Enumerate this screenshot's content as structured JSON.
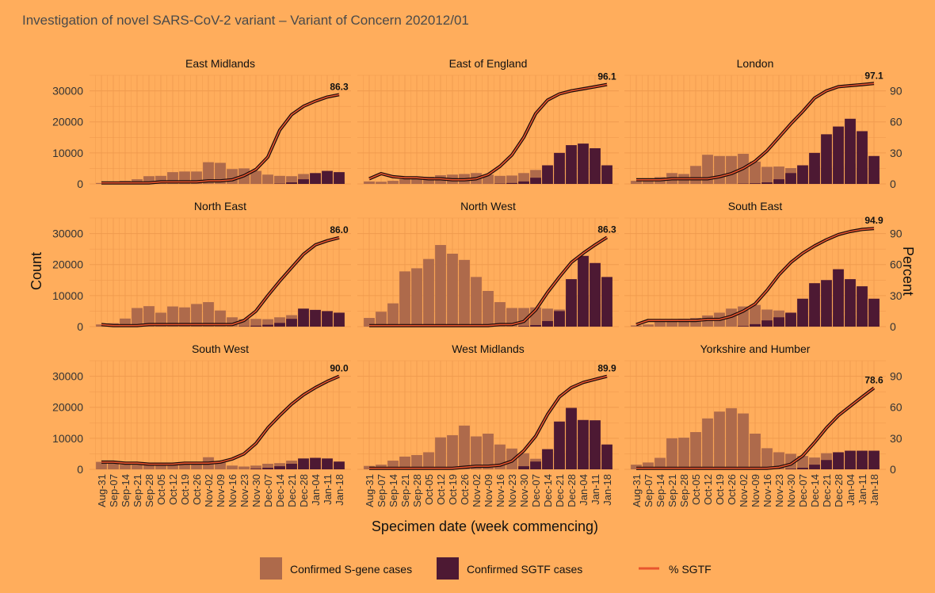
{
  "chart_data": {
    "type": "bar",
    "title": "Investigation of novel SARS-CoV-2 variant – Variant of Concern 202012/01",
    "xlabel": "Specimen date (week commencing)",
    "ylabel": "Count",
    "y2label": "Percent",
    "ylim": [
      0,
      35000
    ],
    "y2lim": [
      0,
      105
    ],
    "yticks": [
      0,
      10000,
      20000,
      30000
    ],
    "y2ticks": [
      0,
      30,
      60,
      90
    ],
    "weeks": [
      "Aug-31",
      "Sep-07",
      "Sep-14",
      "Sep-21",
      "Sep-28",
      "Oct-05",
      "Oct-12",
      "Oct-19",
      "Oct-26",
      "Nov-02",
      "Nov-09",
      "Nov-16",
      "Nov-23",
      "Nov-30",
      "Dec-07",
      "Dec-14",
      "Dec-21",
      "Dec-28",
      "Jan-04",
      "Jan-11",
      "Jan-18"
    ],
    "legend": [
      {
        "key": "sgene",
        "label": "Confirmed S-gene cases",
        "color": "#AE6A4B"
      },
      {
        "key": "sgtf",
        "label": "Confirmed SGTF cases",
        "color": "#4D1933"
      },
      {
        "key": "pct",
        "label": "% SGTF",
        "color": "#E8552E"
      }
    ],
    "panels": [
      {
        "name": "East Midlands",
        "sgene": [
          300,
          500,
          1000,
          1500,
          2500,
          2600,
          3800,
          4000,
          4000,
          7000,
          6800,
          4800,
          5000,
          4200,
          3000,
          2600,
          2500,
          3200,
          3200,
          2200,
          1000
        ],
        "sgtf": [
          0,
          0,
          0,
          0,
          0,
          0,
          0,
          0,
          0,
          0,
          0,
          0,
          0,
          0,
          0,
          100,
          500,
          1500,
          3500,
          4200,
          3800
        ],
        "pct": [
          1,
          1,
          1,
          1,
          1,
          2,
          2,
          2,
          2,
          3,
          3,
          4,
          8,
          14,
          26,
          52,
          67,
          75,
          80,
          84,
          86.3
        ],
        "final_label": "86.3"
      },
      {
        "name": "East of England",
        "sgene": [
          800,
          700,
          1000,
          1500,
          1800,
          2300,
          2800,
          3000,
          3200,
          3500,
          3000,
          2600,
          2700,
          3500,
          4500,
          4700,
          3000,
          2000,
          1500,
          1000,
          500
        ],
        "sgtf": [
          0,
          0,
          0,
          0,
          0,
          0,
          0,
          0,
          0,
          0,
          0,
          100,
          300,
          800,
          2000,
          6000,
          10000,
          12500,
          13000,
          11500,
          6000
        ],
        "pct": [
          5,
          10,
          7,
          6,
          6,
          5,
          5,
          4,
          4,
          5,
          9,
          17,
          28,
          45,
          68,
          81,
          87,
          90,
          92,
          94,
          96.1
        ],
        "final_label": "96.1"
      },
      {
        "name": "London",
        "sgene": [
          1000,
          1800,
          2200,
          3500,
          3200,
          5800,
          9400,
          9000,
          9000,
          9700,
          7200,
          5500,
          5600,
          5100,
          4800,
          5800,
          5200,
          5800,
          6500,
          5000,
          2000
        ],
        "sgtf": [
          0,
          0,
          0,
          0,
          0,
          0,
          0,
          0,
          0,
          100,
          200,
          500,
          1500,
          3500,
          6000,
          10000,
          16000,
          18500,
          21000,
          17000,
          9000
        ],
        "pct": [
          4,
          4,
          4,
          5,
          5,
          5,
          5,
          7,
          10,
          15,
          22,
          32,
          45,
          58,
          70,
          83,
          90,
          94,
          95,
          96,
          97.1
        ],
        "final_label": "97.1"
      },
      {
        "name": "North East",
        "sgene": [
          700,
          1100,
          2600,
          6000,
          6600,
          4500,
          6500,
          6200,
          7300,
          7900,
          5200,
          3000,
          2400,
          2500,
          2400,
          3000,
          3700,
          3200,
          2000,
          1200,
          600
        ],
        "sgtf": [
          0,
          0,
          0,
          0,
          0,
          0,
          0,
          0,
          0,
          0,
          0,
          0,
          100,
          300,
          600,
          1200,
          2500,
          5800,
          5400,
          5000,
          4500
        ],
        "pct": [
          2,
          1,
          1,
          1,
          2,
          2,
          2,
          2,
          2,
          2,
          2,
          2,
          6,
          15,
          30,
          44,
          57,
          70,
          79,
          83,
          86.0
        ],
        "final_label": "86.0"
      },
      {
        "name": "North West",
        "sgene": [
          2800,
          4800,
          7500,
          17800,
          18800,
          21800,
          26300,
          23500,
          21500,
          16000,
          11500,
          7900,
          6000,
          6000,
          6200,
          5800,
          5500,
          10000,
          10000,
          7400,
          3100
        ],
        "sgtf": [
          0,
          0,
          0,
          0,
          0,
          0,
          0,
          0,
          0,
          0,
          0,
          0,
          0,
          200,
          500,
          1800,
          5000,
          15300,
          22800,
          20500,
          16000
        ],
        "pct": [
          1,
          1,
          1,
          1,
          1,
          1,
          1,
          1,
          1,
          1,
          1,
          2,
          2,
          5,
          16,
          33,
          48,
          62,
          71,
          79,
          86.3
        ],
        "final_label": "86.3"
      },
      {
        "name": "South East",
        "sgene": [
          400,
          700,
          1500,
          2000,
          2500,
          2800,
          3600,
          4500,
          5800,
          6500,
          7000,
          5500,
          5200,
          4000,
          3500,
          3200,
          3000,
          3500,
          3600,
          2500,
          1000
        ],
        "sgtf": [
          0,
          0,
          0,
          0,
          0,
          0,
          0,
          0,
          0,
          200,
          800,
          2000,
          3000,
          4500,
          9000,
          14000,
          15000,
          18500,
          15300,
          13000,
          9000
        ],
        "pct": [
          2,
          6,
          6,
          6,
          6,
          6,
          7,
          7,
          10,
          15,
          22,
          35,
          50,
          62,
          71,
          78,
          84,
          89,
          92,
          94,
          94.9
        ],
        "final_label": "94.9"
      },
      {
        "name": "South West",
        "sgene": [
          2400,
          2000,
          1500,
          1400,
          1300,
          1500,
          1600,
          1800,
          2000,
          3900,
          2200,
          1200,
          900,
          1200,
          1800,
          2000,
          2800,
          1800,
          1200,
          600,
          200
        ],
        "sgtf": [
          0,
          0,
          0,
          0,
          0,
          0,
          0,
          0,
          0,
          0,
          0,
          0,
          0,
          200,
          500,
          1000,
          1800,
          3500,
          3700,
          3500,
          2500
        ],
        "pct": [
          7,
          7,
          6,
          6,
          5,
          5,
          5,
          6,
          6,
          6,
          7,
          10,
          15,
          25,
          40,
          52,
          63,
          72,
          79,
          85,
          90.0
        ],
        "final_label": "90.0"
      },
      {
        "name": "West Midlands",
        "sgene": [
          1100,
          1500,
          2800,
          4100,
          4600,
          5500,
          10300,
          11000,
          14100,
          10600,
          11500,
          8000,
          6700,
          5200,
          3400,
          5600,
          5100,
          6000,
          3500,
          2500,
          900
        ],
        "sgtf": [
          0,
          0,
          0,
          0,
          0,
          0,
          0,
          0,
          0,
          0,
          0,
          0,
          0,
          1000,
          2500,
          6500,
          15400,
          19800,
          15900,
          15800,
          8000
        ],
        "pct": [
          1,
          1,
          1,
          1,
          1,
          1,
          1,
          1,
          2,
          3,
          3,
          4,
          8,
          18,
          32,
          53,
          70,
          79,
          84,
          87,
          89.9
        ],
        "final_label": "89.9"
      },
      {
        "name": "Yorkshire and Humber",
        "sgene": [
          1500,
          2200,
          3700,
          10000,
          10200,
          12000,
          16400,
          18600,
          19700,
          18000,
          11500,
          6800,
          5500,
          5000,
          4300,
          3800,
          5200,
          4700,
          2500,
          2500,
          1400
        ],
        "sgtf": [
          0,
          0,
          0,
          0,
          0,
          0,
          0,
          0,
          0,
          0,
          0,
          0,
          0,
          200,
          500,
          1500,
          3000,
          5500,
          6000,
          6000,
          6000
        ],
        "pct": [
          1,
          1,
          1,
          1,
          1,
          1,
          1,
          1,
          1,
          1,
          1,
          1,
          2,
          5,
          13,
          26,
          40,
          52,
          61,
          70,
          78.6
        ],
        "final_label": "78.6"
      }
    ]
  }
}
